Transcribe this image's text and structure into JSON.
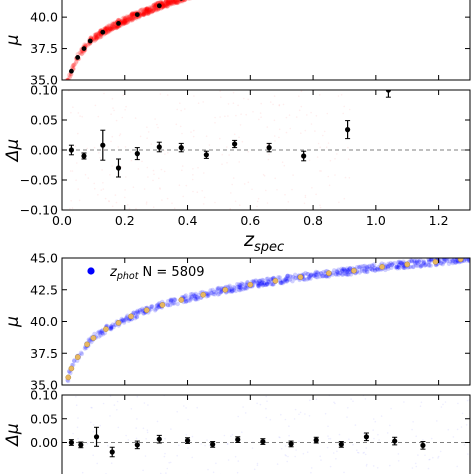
{
  "chart_data": [
    {
      "type": "scatter",
      "panel": "top-spec-mu",
      "ylabel": "μ",
      "ylim": [
        35.0,
        42.0
      ],
      "xlim": [
        0.0,
        1.3
      ],
      "yticks": [
        "35.0",
        "37.5",
        "40.0"
      ],
      "colors": {
        "cloud": "#ff0000",
        "points": "#000000"
      },
      "binned_points": {
        "x": [
          0.03,
          0.05,
          0.07,
          0.09,
          0.13,
          0.18,
          0.24,
          0.31,
          0.38
        ],
        "y": [
          35.7,
          36.8,
          37.5,
          38.1,
          38.8,
          39.5,
          40.2,
          40.9,
          41.5
        ]
      }
    },
    {
      "type": "scatter",
      "panel": "top-spec-residual",
      "xlabel_main": "z",
      "xlabel_sub": "spec",
      "ylabel": "Δμ",
      "ylim": [
        -0.1,
        0.1
      ],
      "xlim": [
        0.0,
        1.3
      ],
      "xticks": [
        "0.0",
        "0.2",
        "0.4",
        "0.6",
        "0.8",
        "1.0",
        "1.2"
      ],
      "yticks": [
        "0.10",
        "0.05",
        "0.00",
        "−0.05",
        "−0.10"
      ],
      "points": {
        "x": [
          0.03,
          0.07,
          0.13,
          0.18,
          0.24,
          0.31,
          0.38,
          0.46,
          0.55,
          0.66,
          0.77,
          0.91,
          1.04
        ],
        "y": [
          0.0,
          -0.01,
          0.008,
          -0.03,
          -0.006,
          0.005,
          0.004,
          -0.008,
          0.01,
          0.004,
          -0.01,
          0.034,
          0.1
        ],
        "err": [
          0.008,
          0.005,
          0.025,
          0.015,
          0.01,
          0.008,
          0.007,
          0.006,
          0.006,
          0.007,
          0.008,
          0.015,
          0.012
        ]
      }
    },
    {
      "type": "scatter",
      "panel": "bottom-phot-mu",
      "ylabel": "μ",
      "ylim": [
        35.0,
        45.0
      ],
      "xlim": [
        0.0,
        1.3
      ],
      "yticks": [
        "45.0",
        "42.5",
        "40.0",
        "37.5",
        "35.0"
      ],
      "legend": {
        "label_main": "z",
        "label_sub": "phot",
        "label_rest": " N = 5809",
        "placement": "top-left"
      },
      "colors": {
        "cloud": "#0000ff",
        "points": "#e8b860"
      },
      "binned_points": {
        "x": [
          0.02,
          0.03,
          0.05,
          0.08,
          0.1,
          0.14,
          0.18,
          0.22,
          0.27,
          0.32,
          0.38,
          0.45,
          0.52,
          0.6,
          0.68,
          0.76,
          0.85,
          0.93,
          1.02,
          1.1,
          1.19,
          1.27
        ],
        "y": [
          35.6,
          36.3,
          37.2,
          38.2,
          38.7,
          39.4,
          39.9,
          40.4,
          40.9,
          41.3,
          41.7,
          42.1,
          42.5,
          42.9,
          43.2,
          43.5,
          43.8,
          44.0,
          44.3,
          44.5,
          44.7,
          44.9
        ]
      }
    },
    {
      "type": "scatter",
      "panel": "bottom-phot-residual",
      "ylabel": "Δμ",
      "ylim": [
        -0.1,
        0.1
      ],
      "xlim": [
        0.0,
        1.3
      ],
      "yticks": [
        "0.10",
        "0.05",
        "0.00"
      ],
      "points": {
        "x": [
          0.03,
          0.06,
          0.11,
          0.16,
          0.24,
          0.31,
          0.4,
          0.48,
          0.56,
          0.64,
          0.73,
          0.81,
          0.89,
          0.97,
          1.06,
          1.15
        ],
        "y": [
          0.0,
          -0.005,
          0.012,
          -0.02,
          -0.005,
          0.007,
          0.004,
          -0.004,
          0.006,
          0.002,
          -0.003,
          0.005,
          -0.004,
          0.012,
          0.003,
          -0.006
        ],
        "err": [
          0.006,
          0.006,
          0.02,
          0.01,
          0.008,
          0.008,
          0.006,
          0.006,
          0.006,
          0.006,
          0.006,
          0.006,
          0.006,
          0.008,
          0.008,
          0.008
        ]
      }
    }
  ]
}
